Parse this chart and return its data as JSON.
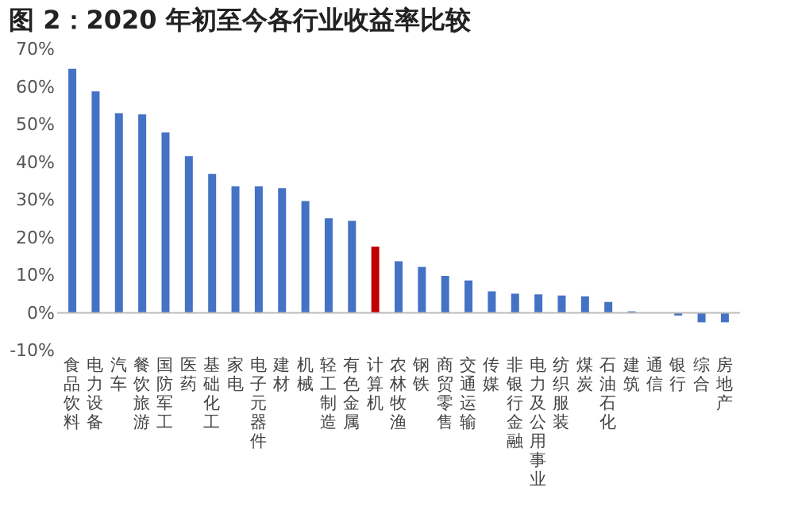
{
  "chart_data": {
    "type": "bar",
    "title": "图 2：2020 年初至今各行业收益率比较",
    "categories": [
      "食品饮料",
      "电力设备",
      "汽车",
      "餐饮旅游",
      "国防军工",
      "医药",
      "基础化工",
      "家电",
      "电子元器件",
      "建材",
      "机械",
      "轻工制造",
      "有色金属",
      "计算机",
      "农林牧渔",
      "钢铁",
      "商贸零售",
      "交通运输",
      "传媒",
      "非银行金融",
      "电力及公用事业",
      "纺织服装",
      "煤炭",
      "石油石化",
      "建筑",
      "通信",
      "银行",
      "综合",
      "房地产"
    ],
    "values": [
      64.8,
      58.8,
      53.0,
      52.7,
      47.9,
      41.6,
      36.9,
      33.6,
      33.6,
      33.1,
      29.7,
      25.1,
      24.4,
      17.6,
      13.7,
      12.2,
      9.8,
      8.6,
      5.7,
      5.1,
      4.9,
      4.6,
      4.4,
      2.9,
      0.4,
      0,
      -0.7,
      -2.5,
      -2.5
    ],
    "colors": [
      "#4472c4",
      "#4472c4",
      "#4472c4",
      "#4472c4",
      "#4472c4",
      "#4472c4",
      "#4472c4",
      "#4472c4",
      "#4472c4",
      "#4472c4",
      "#4472c4",
      "#4472c4",
      "#4472c4",
      "#c00000",
      "#4472c4",
      "#4472c4",
      "#4472c4",
      "#4472c4",
      "#4472c4",
      "#4472c4",
      "#4472c4",
      "#4472c4",
      "#4472c4",
      "#4472c4",
      "#4472c4",
      "#4472c4",
      "#4472c4",
      "#4472c4",
      "#4472c4"
    ],
    "ylim": [
      -10,
      70
    ],
    "yticks": [
      {
        "value": -10,
        "label": "-10%"
      },
      {
        "value": 0,
        "label": "0%"
      },
      {
        "value": 10,
        "label": "10%"
      },
      {
        "value": 20,
        "label": "20%"
      },
      {
        "value": 30,
        "label": "30%"
      },
      {
        "value": 40,
        "label": "40%"
      },
      {
        "value": 50,
        "label": "50%"
      },
      {
        "value": 60,
        "label": "60%"
      },
      {
        "value": 70,
        "label": "70%"
      }
    ],
    "grid": false
  }
}
